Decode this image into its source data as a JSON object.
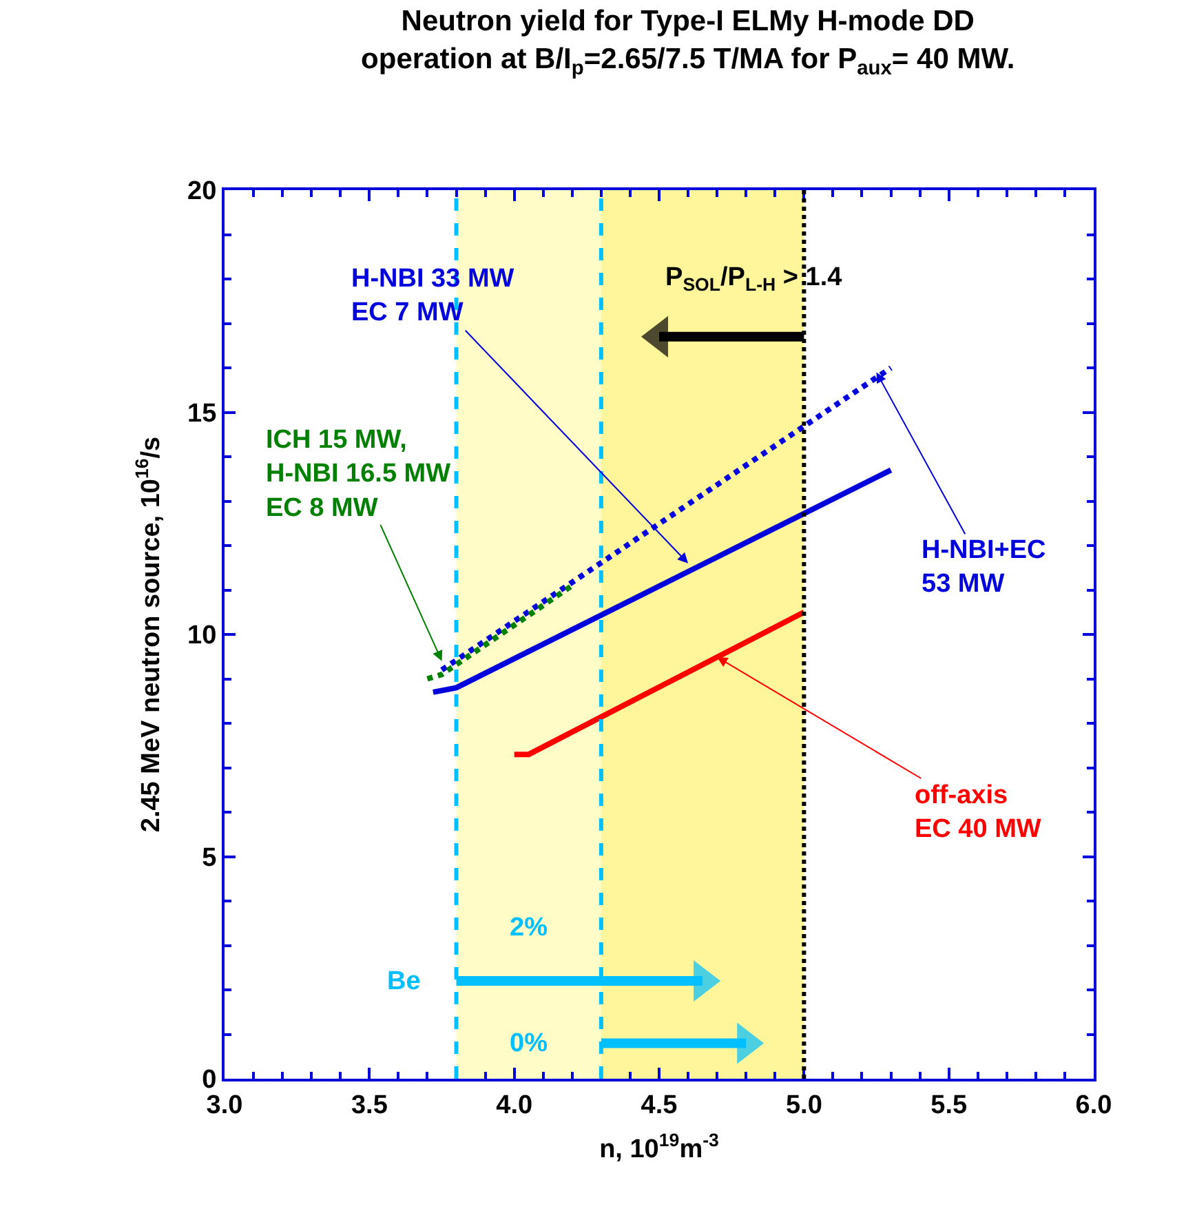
{
  "chart_data": {
    "type": "line",
    "title": "Neutron yield for Type-I ELMy H-mode DD\noperation at B/I$_{p}$=2.65/7.5 T/MA for P$_{aux}$= 40 MW.",
    "xlabel": "n, 10$^{19}$m$^{-3}$",
    "ylabel": "2.45 MeV neutron source, 10$^{16}$/s",
    "xlim": [
      3.0,
      6.0
    ],
    "xticks": [
      {
        "value": 3.0,
        "label": "3.0"
      },
      {
        "value": 3.5,
        "label": "3.5"
      },
      {
        "value": 4.0,
        "label": "4.0"
      },
      {
        "value": 4.5,
        "label": "4.5"
      },
      {
        "value": 5.0,
        "label": "5.0"
      },
      {
        "value": 5.5,
        "label": "5.5"
      },
      {
        "value": 6.0,
        "label": "6.0"
      }
    ],
    "ylim": [
      0,
      20
    ],
    "yticks": [
      0,
      5,
      10,
      15,
      20
    ],
    "grid": false,
    "marker": "none",
    "series": [
      {
        "color": "#0000dd",
        "line_style": "solid",
        "x": [
          3.72,
          3.8,
          5.3
        ],
        "values": [
          8.7,
          8.8,
          13.7
        ]
      },
      {
        "color": "#0000dd",
        "line_style": "dotted",
        "x": [
          3.75,
          5.3
        ],
        "values": [
          9.2,
          16.0
        ]
      },
      {
        "color": "#008000",
        "line_style": "dotted",
        "x": [
          3.7,
          3.75,
          4.2
        ],
        "values": [
          9.0,
          9.1,
          11.1
        ]
      },
      {
        "color": "#ff0000",
        "line_style": "solid",
        "x": [
          4.0,
          4.05,
          5.0
        ],
        "values": [
          7.3,
          7.3,
          10.5
        ]
      },
      {
        "color": "#000000",
        "line_style": "solid",
        "marker": "triangle",
        "x": [
          5.0,
          4.5
        ],
        "values": [
          16.7,
          16.7
        ]
      },
      {
        "color": "#00bfff",
        "line_style": "solid",
        "marker": "triangle",
        "x": [
          3.8,
          4.65
        ],
        "values": [
          2.2,
          2.2
        ]
      },
      {
        "color": "#00bfff",
        "line_style": "solid",
        "marker": "triangle",
        "x": [
          4.3,
          4.8
        ],
        "values": [
          0.8,
          0.8
        ]
      }
    ],
    "bands": [
      {
        "axis": "x",
        "from": 3.8,
        "to": 4.3,
        "color": "#fffcc8"
      },
      {
        "axis": "x",
        "from": 4.3,
        "to": 5.0,
        "color": "#fff59a"
      }
    ],
    "ref_lines": [
      {
        "axis": "x",
        "value": 3.8,
        "color": "#00bfff",
        "line_style": "dashed"
      },
      {
        "axis": "x",
        "value": 4.3,
        "color": "#00bfff",
        "line_style": "dashed"
      },
      {
        "axis": "x",
        "value": 5.0,
        "color": "#000000",
        "line_style": "dotted"
      }
    ],
    "annotations": [
      {
        "text": "H-NBI 33 MW\nEC 7 MW",
        "x": 4.6,
        "y": 11.6
      },
      {
        "text": "ICH 15 MW,\nH-NBI 16.5 MW\nEC 8 MW",
        "x": 3.75,
        "y": 9.4
      },
      {
        "text": "H-NBI+EC\n53 MW",
        "x": 5.25,
        "y": 15.9
      },
      {
        "text": "off-axis\nEC 40 MW",
        "x": 4.7,
        "y": 9.49
      },
      "P$_{SOL}$/P$_{L-H}$ > 1.4",
      "Be",
      "2%",
      "0%"
    ]
  }
}
